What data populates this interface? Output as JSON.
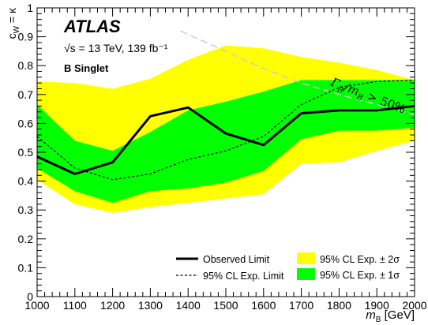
{
  "chart_data": {
    "type": "line",
    "experiment": "ATLAS",
    "energy_lumi": "√s = 13 TeV, 139 fb⁻¹",
    "model": "B Singlet",
    "xlabel_main": "m",
    "xlabel_sub": "B",
    "xlabel_unit": " [GeV]",
    "ylabel": "c_W = κ",
    "xlim": [
      1000,
      2000
    ],
    "ylim": [
      0,
      1
    ],
    "x_ticks": [
      1000,
      1100,
      1200,
      1300,
      1400,
      1500,
      1600,
      1700,
      1800,
      1900,
      2000
    ],
    "y_ticks": [
      0,
      0.1,
      0.2,
      0.3,
      0.4,
      0.5,
      0.6,
      0.7,
      0.8,
      0.9,
      1
    ],
    "x_tick_labels": [
      "1000",
      "1100",
      "1200",
      "1300",
      "1400",
      "1500",
      "1600",
      "1700",
      "1800",
      "1900",
      "2000"
    ],
    "y_tick_labels": [
      "0",
      "0.1",
      "0.2",
      "0.3",
      "0.4",
      "0.5",
      "0.6",
      "0.7",
      "0.8",
      "0.9",
      "1"
    ],
    "x": [
      1000,
      1100,
      1200,
      1300,
      1400,
      1500,
      1600,
      1700,
      1800,
      1900,
      2000
    ],
    "observed": [
      0.485,
      0.425,
      0.465,
      0.625,
      0.655,
      0.565,
      0.525,
      0.635,
      0.645,
      0.645,
      0.66
    ],
    "expected": [
      0.555,
      0.445,
      0.405,
      0.425,
      0.475,
      0.505,
      0.555,
      0.665,
      0.725,
      0.745,
      0.75
    ],
    "band_1sigma_lower": [
      0.445,
      0.365,
      0.325,
      0.365,
      0.375,
      0.395,
      0.435,
      0.545,
      0.575,
      0.575,
      0.585
    ],
    "band_1sigma_upper": [
      0.665,
      0.54,
      0.505,
      0.57,
      0.645,
      0.675,
      0.71,
      0.75,
      0.75,
      0.75,
      0.75
    ],
    "band_2sigma_lower": [
      0.405,
      0.32,
      0.29,
      0.31,
      0.325,
      0.34,
      0.355,
      0.46,
      0.465,
      0.505,
      0.54
    ],
    "band_2sigma_upper": [
      0.745,
      0.74,
      0.72,
      0.755,
      0.82,
      0.87,
      0.86,
      0.83,
      0.81,
      0.785,
      0.75
    ],
    "width_limit_curve": {
      "x": [
        1380,
        1500,
        1600,
        1700,
        1800,
        1900,
        2000
      ],
      "y": [
        0.92,
        0.85,
        0.79,
        0.74,
        0.7,
        0.665,
        0.63
      ]
    },
    "width_limit_label": "Γ_B/m_B > 50%",
    "legend": {
      "observed": "Observed Limit",
      "expected": "95% CL Exp. Limit",
      "band_2sigma": "95% CL Exp. ± 2σ",
      "band_1sigma": "95% CL Exp. ± 1σ"
    },
    "legend_placement": "bottom-right",
    "grid": false,
    "colors": {
      "band_2sigma": "#ffff00",
      "band_1sigma": "#00ff00",
      "observed": "#000000",
      "expected": "#000000",
      "width_limit_curve": "#cccccc"
    }
  }
}
